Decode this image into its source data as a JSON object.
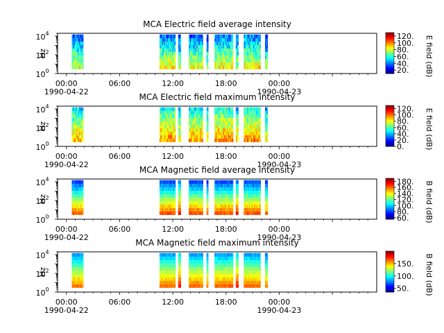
{
  "chart_data": [
    {
      "type": "heatmap",
      "title": "MCA  Electric field average intensity",
      "ylabel": "Hz",
      "cbar_label": "E field (dB)",
      "cbar_ticks": [
        "20.",
        "40.",
        "60.",
        "80.",
        "100.",
        "120."
      ],
      "cbar_range": [
        10,
        130
      ],
      "colormap": "jet",
      "yscale": "log",
      "ylim": [
        1,
        20000
      ],
      "y_ticks": [
        {
          "base": "10",
          "exp": "0"
        },
        {
          "base": "10",
          "exp": "2"
        },
        {
          "base": "10",
          "exp": "4"
        }
      ],
      "xlim_hours": [
        -1,
        35
      ],
      "x_ticks": [
        {
          "time": "00:00",
          "date": "1990-04-22"
        },
        {
          "time": "06:00",
          "date": ""
        },
        {
          "time": "12:00",
          "date": ""
        },
        {
          "time": "18:00",
          "date": ""
        },
        {
          "time": "00:00",
          "date": "1990-04-23"
        }
      ],
      "data_blocks": [
        {
          "start_hour": 0.6,
          "end_hour": 1.9,
          "mean_db": 58
        },
        {
          "start_hour": 10.5,
          "end_hour": 12.3,
          "mean_db": 62
        },
        {
          "start_hour": 12.6,
          "end_hour": 12.9,
          "mean_db": 55
        },
        {
          "start_hour": 13.8,
          "end_hour": 15.4,
          "mean_db": 60
        },
        {
          "start_hour": 15.8,
          "end_hour": 16.0,
          "mean_db": 52
        },
        {
          "start_hour": 16.7,
          "end_hour": 18.8,
          "mean_db": 63
        },
        {
          "start_hour": 19.1,
          "end_hour": 19.4,
          "mean_db": 55
        },
        {
          "start_hour": 20.0,
          "end_hour": 21.9,
          "mean_db": 62
        },
        {
          "start_hour": 22.4,
          "end_hour": 22.7,
          "mean_db": 50
        }
      ]
    },
    {
      "type": "heatmap",
      "title": "MCA  Electric field maximum intensity",
      "ylabel": "Hz",
      "cbar_label": "E field (dB)",
      "cbar_ticks": [
        "0.",
        "20.",
        "40.",
        "60.",
        "80.",
        "100.",
        "120."
      ],
      "cbar_range": [
        0,
        130
      ],
      "colormap": "jet",
      "yscale": "log",
      "ylim": [
        1,
        20000
      ],
      "y_ticks": [
        {
          "base": "10",
          "exp": "0"
        },
        {
          "base": "10",
          "exp": "2"
        },
        {
          "base": "10",
          "exp": "4"
        }
      ],
      "xlim_hours": [
        -1,
        35
      ],
      "x_ticks": [
        {
          "time": "00:00",
          "date": "1990-04-22"
        },
        {
          "time": "06:00",
          "date": ""
        },
        {
          "time": "12:00",
          "date": ""
        },
        {
          "time": "18:00",
          "date": ""
        },
        {
          "time": "00:00",
          "date": "1990-04-23"
        }
      ],
      "data_blocks": [
        {
          "start_hour": 0.6,
          "end_hour": 1.9,
          "mean_db": 70
        },
        {
          "start_hour": 10.5,
          "end_hour": 12.3,
          "mean_db": 74
        },
        {
          "start_hour": 12.6,
          "end_hour": 12.9,
          "mean_db": 66
        },
        {
          "start_hour": 13.8,
          "end_hour": 15.4,
          "mean_db": 72
        },
        {
          "start_hour": 15.8,
          "end_hour": 16.0,
          "mean_db": 62
        },
        {
          "start_hour": 16.7,
          "end_hour": 18.8,
          "mean_db": 75
        },
        {
          "start_hour": 19.1,
          "end_hour": 19.4,
          "mean_db": 66
        },
        {
          "start_hour": 20.0,
          "end_hour": 21.9,
          "mean_db": 74
        },
        {
          "start_hour": 22.4,
          "end_hour": 22.7,
          "mean_db": 60
        }
      ]
    },
    {
      "type": "heatmap",
      "title": "MCA  Magnetic field average intensity",
      "ylabel": "Hz",
      "cbar_label": "B field (dB)",
      "cbar_ticks": [
        "60.",
        "80.",
        "100.",
        "120.",
        "140.",
        "160.",
        "180."
      ],
      "cbar_range": [
        55,
        190
      ],
      "colormap": "jet",
      "yscale": "log",
      "ylim": [
        1,
        20000
      ],
      "y_ticks": [
        {
          "base": "10",
          "exp": "0"
        },
        {
          "base": "10",
          "exp": "2"
        },
        {
          "base": "10",
          "exp": "4"
        }
      ],
      "xlim_hours": [
        -1,
        35
      ],
      "x_ticks": [
        {
          "time": "00:00",
          "date": "1990-04-22"
        },
        {
          "time": "06:00",
          "date": ""
        },
        {
          "time": "12:00",
          "date": ""
        },
        {
          "time": "18:00",
          "date": ""
        },
        {
          "time": "00:00",
          "date": "1990-04-23"
        }
      ],
      "data_blocks": [
        {
          "start_hour": 0.6,
          "end_hour": 1.9,
          "mean_db": 120
        },
        {
          "start_hour": 10.5,
          "end_hour": 12.3,
          "mean_db": 122
        },
        {
          "start_hour": 12.6,
          "end_hour": 12.9,
          "mean_db": 130
        },
        {
          "start_hour": 13.8,
          "end_hour": 15.4,
          "mean_db": 122
        },
        {
          "start_hour": 15.8,
          "end_hour": 16.0,
          "mean_db": 118
        },
        {
          "start_hour": 16.7,
          "end_hour": 18.8,
          "mean_db": 122
        },
        {
          "start_hour": 19.1,
          "end_hour": 19.4,
          "mean_db": 130
        },
        {
          "start_hour": 20.0,
          "end_hour": 21.9,
          "mean_db": 122
        },
        {
          "start_hour": 22.4,
          "end_hour": 22.7,
          "mean_db": 118
        }
      ]
    },
    {
      "type": "heatmap",
      "title": "MCA  Magnetic field maximum intensity",
      "ylabel": "Hz",
      "cbar_label": "B field (dB)",
      "cbar_ticks": [
        "50.",
        "100.",
        "150."
      ],
      "cbar_range": [
        35,
        200
      ],
      "colormap": "jet",
      "yscale": "log",
      "ylim": [
        1,
        20000
      ],
      "y_ticks": [
        {
          "base": "10",
          "exp": "0"
        },
        {
          "base": "10",
          "exp": "2"
        },
        {
          "base": "10",
          "exp": "4"
        }
      ],
      "xlim_hours": [
        -1,
        35
      ],
      "x_ticks": [
        {
          "time": "00:00",
          "date": "1990-04-22"
        },
        {
          "time": "06:00",
          "date": ""
        },
        {
          "time": "12:00",
          "date": ""
        },
        {
          "time": "18:00",
          "date": ""
        },
        {
          "time": "00:00",
          "date": "1990-04-23"
        }
      ],
      "data_blocks": [
        {
          "start_hour": 0.6,
          "end_hour": 1.9,
          "mean_db": 120
        },
        {
          "start_hour": 10.5,
          "end_hour": 12.3,
          "mean_db": 123
        },
        {
          "start_hour": 12.6,
          "end_hour": 12.9,
          "mean_db": 135
        },
        {
          "start_hour": 13.8,
          "end_hour": 15.4,
          "mean_db": 123
        },
        {
          "start_hour": 15.8,
          "end_hour": 16.0,
          "mean_db": 118
        },
        {
          "start_hour": 16.7,
          "end_hour": 18.8,
          "mean_db": 123
        },
        {
          "start_hour": 19.1,
          "end_hour": 19.4,
          "mean_db": 135
        },
        {
          "start_hour": 20.0,
          "end_hour": 21.9,
          "mean_db": 123
        },
        {
          "start_hour": 22.4,
          "end_hour": 22.7,
          "mean_db": 118
        }
      ]
    }
  ]
}
